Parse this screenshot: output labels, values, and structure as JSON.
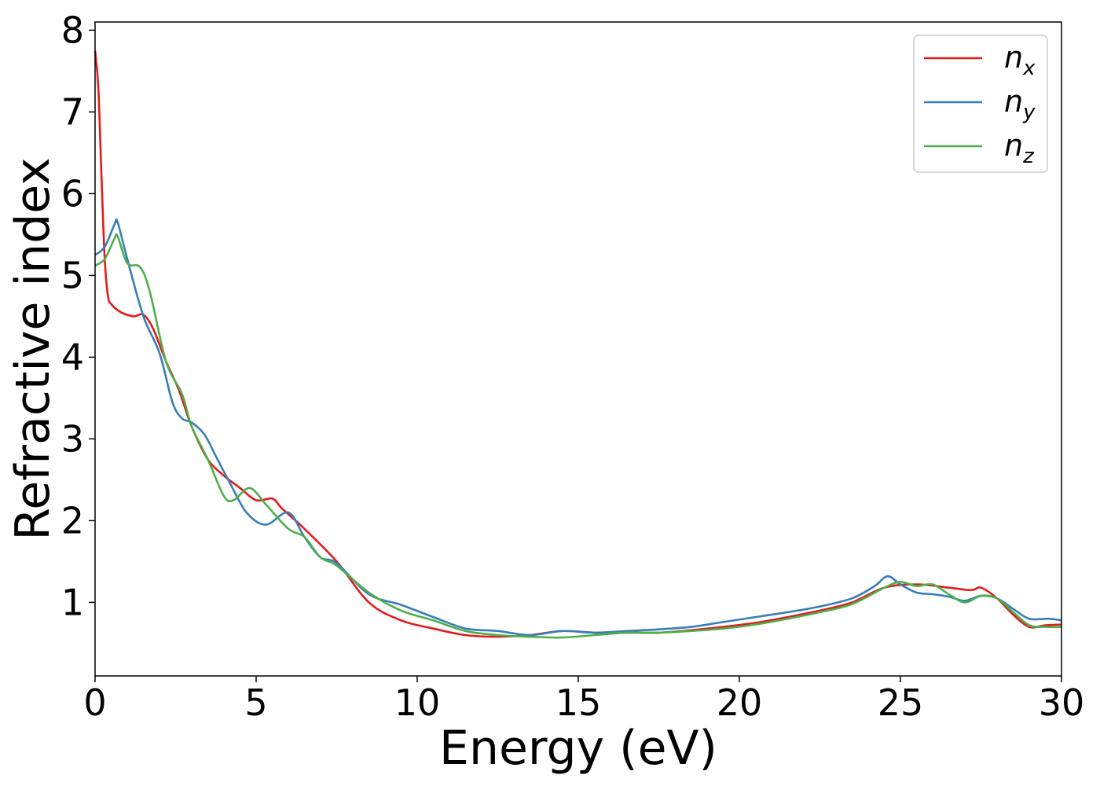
{
  "chart_data": {
    "type": "line",
    "title": "",
    "xlabel": "Energy (eV)",
    "ylabel": "Refractive index",
    "xlim": [
      0,
      30
    ],
    "ylim": [
      0.1,
      8.1
    ],
    "xticks": [
      "0",
      "5",
      "10",
      "15",
      "20",
      "25",
      "30"
    ],
    "yticks": [
      "1",
      "2",
      "3",
      "4",
      "5",
      "6",
      "7",
      "8"
    ],
    "grid": false,
    "legend": "top-right",
    "series": [
      {
        "name": "n_x",
        "label_base": "n",
        "label_sub": "x",
        "color": "#e41a1c",
        "x": [
          0,
          0.1,
          0.2,
          0.3,
          0.4,
          0.5,
          0.8,
          1.2,
          1.5,
          1.8,
          2.2,
          2.6,
          3.0,
          3.5,
          4.0,
          4.5,
          5.0,
          5.5,
          5.8,
          6.5,
          7.5,
          8.5,
          9.5,
          10.5,
          11.5,
          12.5,
          13.5,
          14.5,
          15.5,
          16.5,
          17.5,
          18.5,
          19.5,
          20.5,
          21.5,
          22.5,
          23.5,
          24.5,
          25.5,
          26.5,
          27.2,
          27.5,
          28.0,
          28.5,
          29.0,
          29.5,
          30.0
        ],
        "y": [
          7.75,
          7.3,
          6.2,
          5.2,
          4.75,
          4.65,
          4.55,
          4.5,
          4.52,
          4.35,
          3.95,
          3.6,
          3.15,
          2.75,
          2.55,
          2.4,
          2.25,
          2.27,
          2.15,
          1.9,
          1.5,
          1.0,
          0.78,
          0.68,
          0.6,
          0.58,
          0.6,
          0.65,
          0.63,
          0.63,
          0.63,
          0.66,
          0.7,
          0.75,
          0.82,
          0.9,
          1.0,
          1.18,
          1.22,
          1.18,
          1.15,
          1.18,
          1.05,
          0.85,
          0.7,
          0.72,
          0.73
        ]
      },
      {
        "name": "n_y",
        "label_base": "n",
        "label_sub": "y",
        "color": "#377eb8",
        "x": [
          0,
          0.3,
          0.6,
          0.7,
          1.0,
          1.5,
          2.0,
          2.4,
          2.7,
          3.0,
          3.4,
          3.8,
          4.2,
          4.7,
          5.3,
          6.0,
          6.5,
          7.0,
          7.5,
          8.5,
          9.5,
          10.5,
          11.5,
          12.5,
          13.5,
          14.5,
          15.5,
          16.5,
          17.5,
          18.5,
          19.5,
          20.5,
          21.5,
          22.5,
          23.5,
          24.2,
          24.6,
          25.0,
          25.5,
          26.0,
          26.5,
          27.0,
          27.5,
          28.0,
          28.5,
          29.0,
          29.6,
          30.0
        ],
        "y": [
          5.25,
          5.35,
          5.62,
          5.65,
          5.2,
          4.5,
          4.05,
          3.45,
          3.25,
          3.2,
          3.05,
          2.75,
          2.45,
          2.1,
          1.95,
          2.1,
          1.8,
          1.55,
          1.48,
          1.1,
          0.97,
          0.82,
          0.68,
          0.65,
          0.6,
          0.65,
          0.63,
          0.65,
          0.67,
          0.7,
          0.76,
          0.82,
          0.88,
          0.95,
          1.05,
          1.2,
          1.32,
          1.22,
          1.12,
          1.1,
          1.07,
          1.02,
          1.08,
          1.05,
          0.92,
          0.8,
          0.8,
          0.78
        ]
      },
      {
        "name": "n_z",
        "label_base": "n",
        "label_sub": "z",
        "color": "#4daf4a",
        "x": [
          0,
          0.3,
          0.6,
          0.7,
          1.0,
          1.4,
          1.7,
          2.2,
          2.7,
          3.0,
          3.5,
          4.0,
          4.3,
          4.8,
          5.3,
          6.0,
          6.5,
          7.0,
          7.5,
          8.5,
          9.5,
          10.5,
          11.5,
          12.5,
          13.5,
          14.5,
          15.5,
          16.5,
          17.5,
          18.5,
          19.5,
          20.5,
          21.5,
          22.5,
          23.5,
          24.5,
          25.0,
          25.5,
          26.0,
          26.5,
          27.0,
          27.5,
          28.0,
          28.5,
          29.0,
          29.5,
          30.0
        ],
        "y": [
          5.12,
          5.2,
          5.45,
          5.48,
          5.15,
          5.1,
          4.8,
          3.95,
          3.55,
          3.15,
          2.75,
          2.3,
          2.25,
          2.4,
          2.2,
          1.9,
          1.8,
          1.55,
          1.45,
          1.12,
          0.9,
          0.78,
          0.65,
          0.6,
          0.58,
          0.57,
          0.6,
          0.63,
          0.63,
          0.65,
          0.68,
          0.73,
          0.8,
          0.88,
          0.98,
          1.18,
          1.25,
          1.2,
          1.22,
          1.1,
          1.0,
          1.08,
          1.05,
          0.88,
          0.72,
          0.7,
          0.7
        ]
      }
    ]
  }
}
